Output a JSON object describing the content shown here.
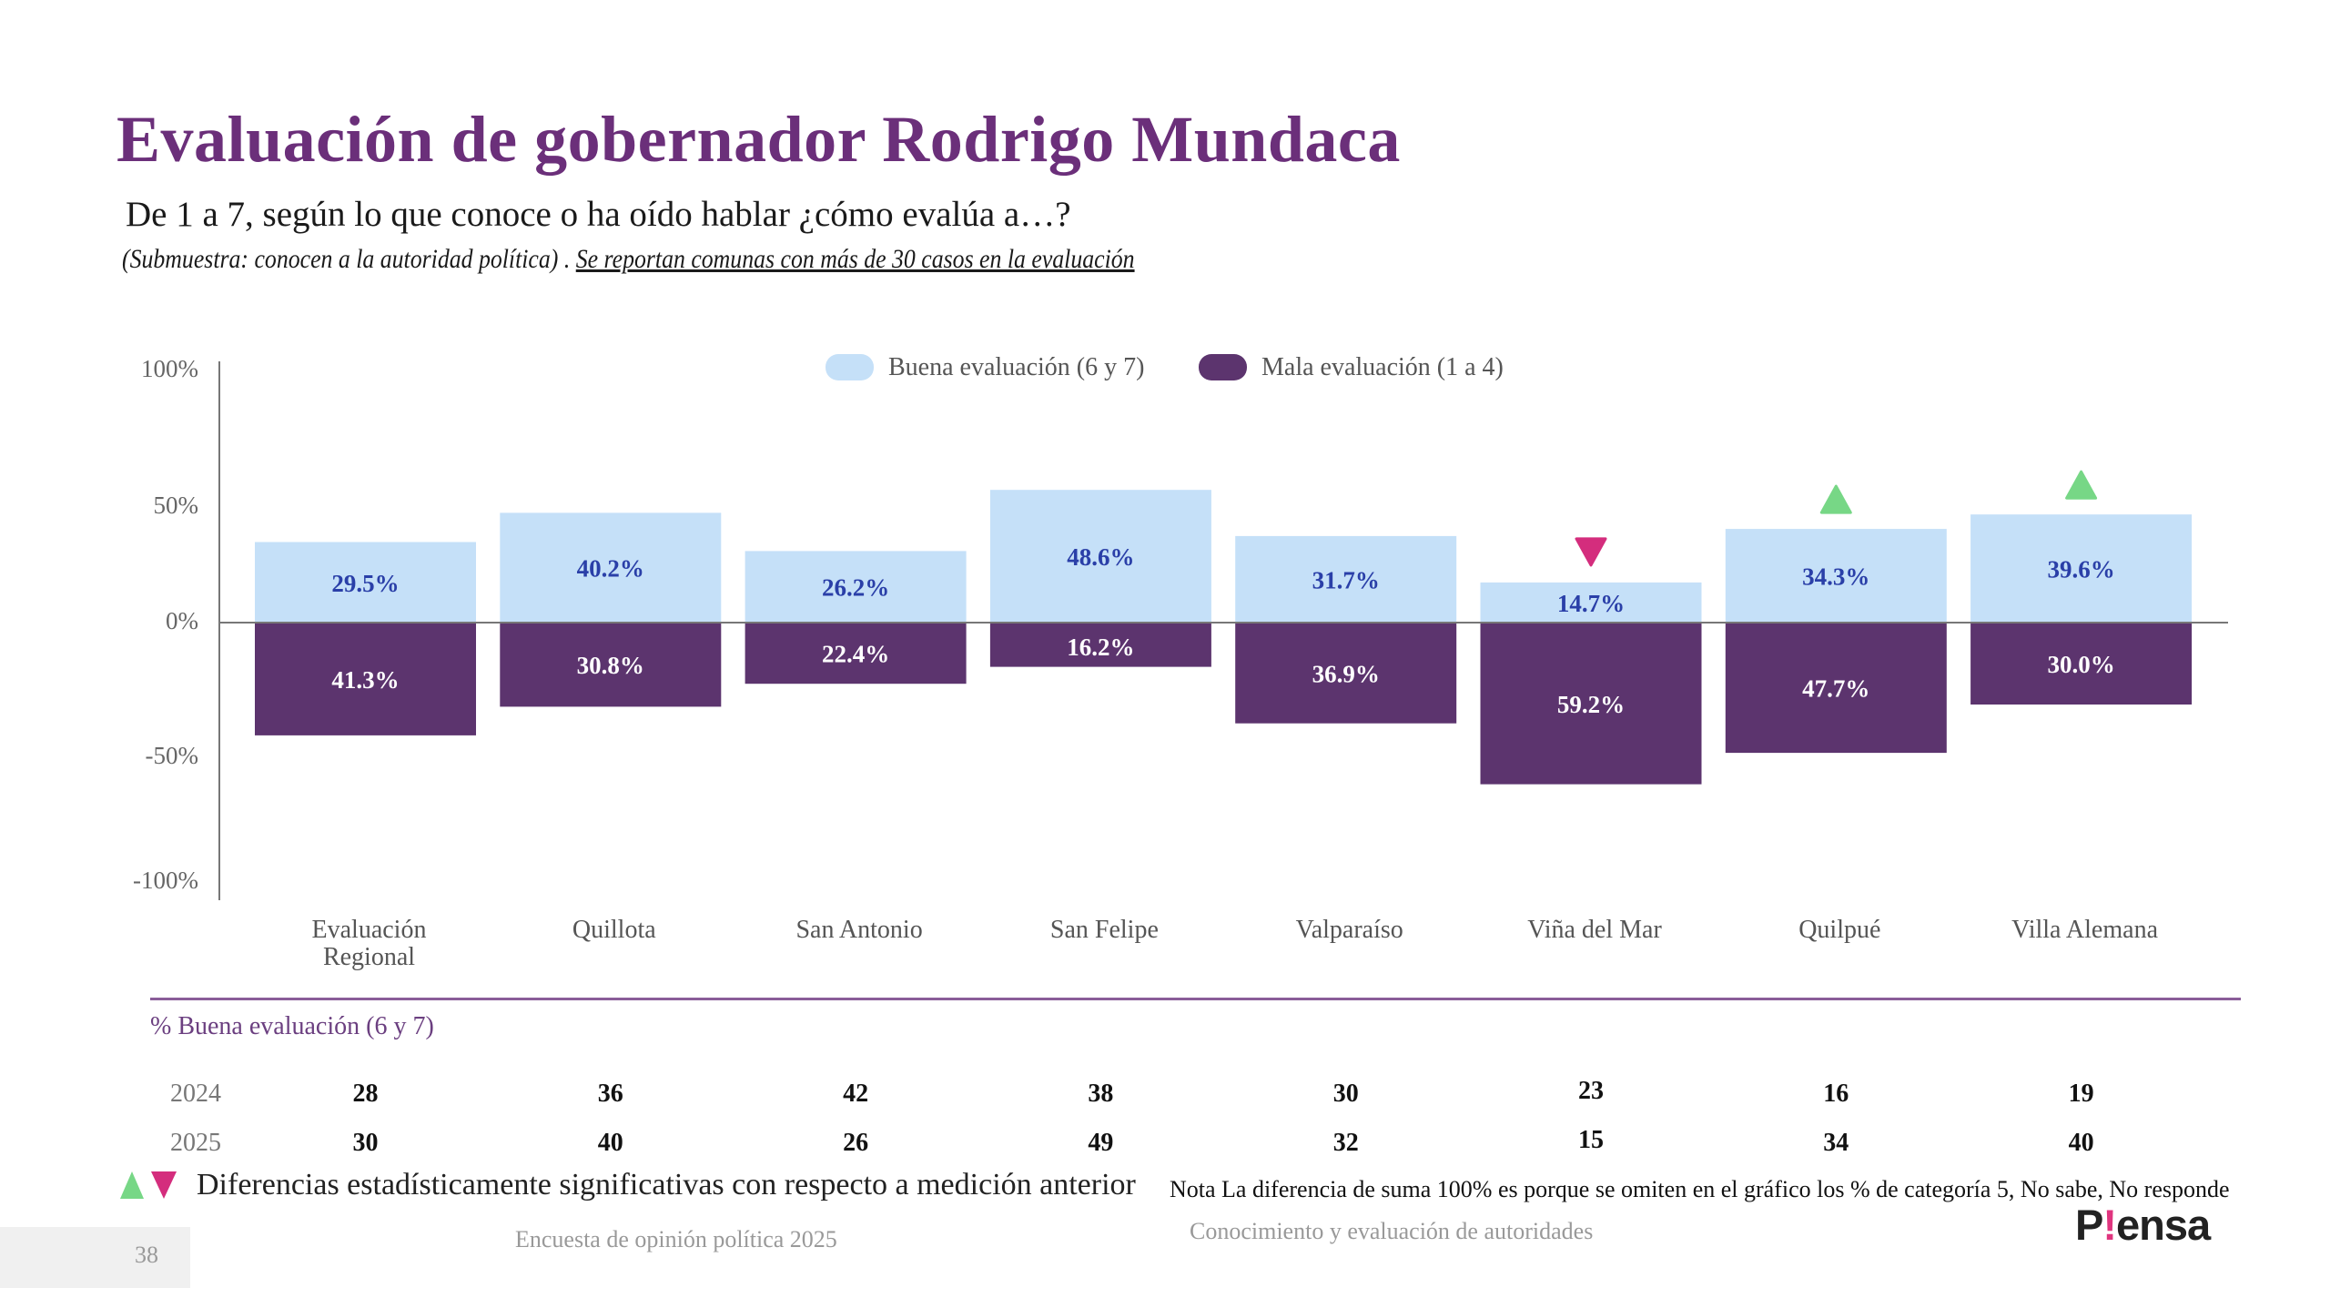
{
  "header": {
    "title": "Evaluación de gobernador Rodrigo Mundaca",
    "question": "De 1 a 7, según lo que conoce o ha oído hablar ¿cómo evalúa a…?",
    "subsample": "(Submuestra: conocen a la autoridad política) . ",
    "subsample_note": "Se reportan comunas con más de 30 casos en la evaluación"
  },
  "colors": {
    "title": "#6b2f7a",
    "good": "#c5e0f8",
    "bad": "#5c346e",
    "good_label": "#2a3fa8",
    "sig_up": "#77d786",
    "sig_down": "#d42d7d",
    "brand_accent": "#e0357f"
  },
  "chart_data": {
    "type": "bar",
    "title": "Evaluación de gobernador Rodrigo Mundaca",
    "xlabel": "",
    "ylabel": "",
    "ylim": [
      -100,
      100
    ],
    "y_ticks": [
      100,
      50,
      0,
      -50,
      -100
    ],
    "y_tick_labels": [
      "100%",
      "50%",
      "0%",
      "-50%",
      "-100%"
    ],
    "legend_position": "top-center",
    "grid": false,
    "categories": [
      "Evaluación Regional",
      "Quillota",
      "San Antonio",
      "San Felipe",
      "Valparaíso",
      "Viña del Mar",
      "Quilpué",
      "Villa Alemana"
    ],
    "category_lines": [
      [
        "Evaluación",
        "Regional"
      ],
      [
        "Quillota"
      ],
      [
        "San Antonio"
      ],
      [
        "San Felipe"
      ],
      [
        "Valparaíso"
      ],
      [
        "Viña del Mar"
      ],
      [
        "Quilpué"
      ],
      [
        "Villa Alemana"
      ]
    ],
    "series": [
      {
        "name": "Buena evaluación (6 y 7)",
        "values": [
          29.5,
          40.2,
          26.2,
          48.6,
          31.7,
          14.7,
          34.3,
          39.6
        ],
        "labels": [
          "29.5%",
          "40.2%",
          "26.2%",
          "48.6%",
          "31.7%",
          "14.7%",
          "34.3%",
          "39.6%"
        ]
      },
      {
        "name": "Mala evaluación (1 a 4)",
        "values": [
          -41.3,
          -30.8,
          -22.4,
          -16.2,
          -36.9,
          -59.2,
          -47.7,
          -30.0
        ],
        "labels": [
          "41.3%",
          "30.8%",
          "22.4%",
          "16.2%",
          "36.9%",
          "59.2%",
          "47.7%",
          "30.0%"
        ]
      }
    ],
    "significance": [
      null,
      null,
      null,
      null,
      null,
      "down",
      "up",
      "up"
    ]
  },
  "table": {
    "title": "% Buena evaluación (6 y 7)",
    "rows": [
      {
        "year": "2024",
        "values": [
          "28",
          "36",
          "42",
          "38",
          "30",
          "23",
          "16",
          "19"
        ]
      },
      {
        "year": "2025",
        "values": [
          "30",
          "40",
          "26",
          "49",
          "32",
          "15",
          "34",
          "40"
        ]
      }
    ]
  },
  "footer": {
    "significance_text": "Diferencias estadísticamente significativas con respecto a medición anterior",
    "note": "Nota La diferencia de suma 100% es porque se omiten en el gráfico los % de categoría 5, No sabe, No responde",
    "page_number": "38",
    "survey_name": "Encuesta de opinión política 2025",
    "section": "Conocimiento y evaluación de autoridades",
    "logo_p": "P",
    "logo_bang": "!",
    "logo_rest": "ensa"
  }
}
